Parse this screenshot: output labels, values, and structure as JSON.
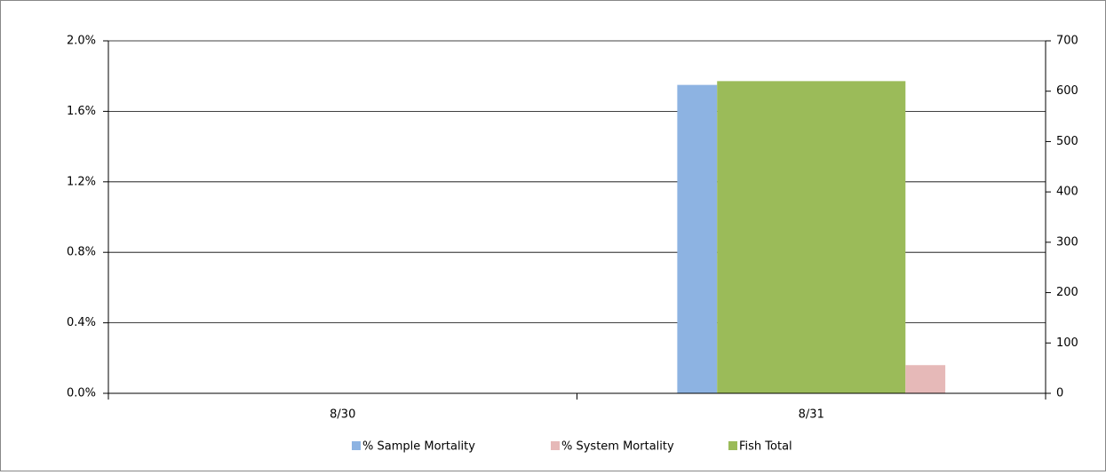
{
  "chart_data": {
    "type": "bar",
    "categories": [
      "8/30",
      "8/31"
    ],
    "series": [
      {
        "name": "% Sample Mortality",
        "color": "#8db3e2",
        "values": [
          null,
          1.75
        ]
      },
      {
        "name": "% System Mortality",
        "color": "#e6b9b8",
        "values": [
          null,
          0.16
        ]
      },
      {
        "name": "Fish Total",
        "color": "#9bbb59",
        "values": [
          null,
          620
        ],
        "axis": "y2"
      }
    ],
    "ylim": [
      0,
      2
    ],
    "yticks": [
      {
        "value": 0,
        "label": "0.0%"
      },
      {
        "value": 0.4,
        "label": "0.4%"
      },
      {
        "value": 0.8,
        "label": "0.8%"
      },
      {
        "value": 1.2,
        "label": "1.2%"
      },
      {
        "value": 1.6,
        "label": "1.6%"
      },
      {
        "value": 2,
        "label": "2.0%"
      }
    ],
    "y2lim": [
      0,
      700
    ],
    "y2ticks": [
      0,
      100,
      200,
      300,
      400,
      500,
      600,
      700
    ],
    "grid": true,
    "legend": "bottom"
  }
}
